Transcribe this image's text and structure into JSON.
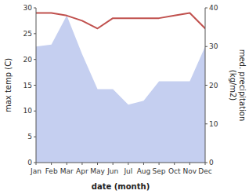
{
  "chart_data": {
    "type": "line",
    "categories": [
      "Jan",
      "Feb",
      "Mar",
      "Apr",
      "May",
      "Jun",
      "Jul",
      "Aug",
      "Sep",
      "Oct",
      "Nov",
      "Dec"
    ],
    "xlabel": "date (month)",
    "ylabel": "max temp (C)",
    "y2label": "med. precipitation\n(kg/m2)",
    "ylim": [
      0,
      30
    ],
    "yticks": [
      0,
      5,
      10,
      15,
      20,
      25,
      30
    ],
    "y2lim": [
      0,
      40
    ],
    "y2ticks": [
      0,
      10,
      20,
      30,
      40
    ],
    "grid": false,
    "series": [
      {
        "type": "area",
        "axis": "y2",
        "color": "#c5cff0",
        "values": [
          30.0,
          30.5,
          38.0,
          28.0,
          19.0,
          19.0,
          15.0,
          16.0,
          21.0,
          21.0,
          21.0,
          30.0
        ]
      },
      {
        "type": "line",
        "color": "#c0504d",
        "values": [
          29.0,
          29.0,
          28.5,
          27.5,
          26.0,
          28.0,
          28.0,
          28.0,
          28.0,
          28.5,
          29.0,
          26.0
        ]
      }
    ]
  }
}
